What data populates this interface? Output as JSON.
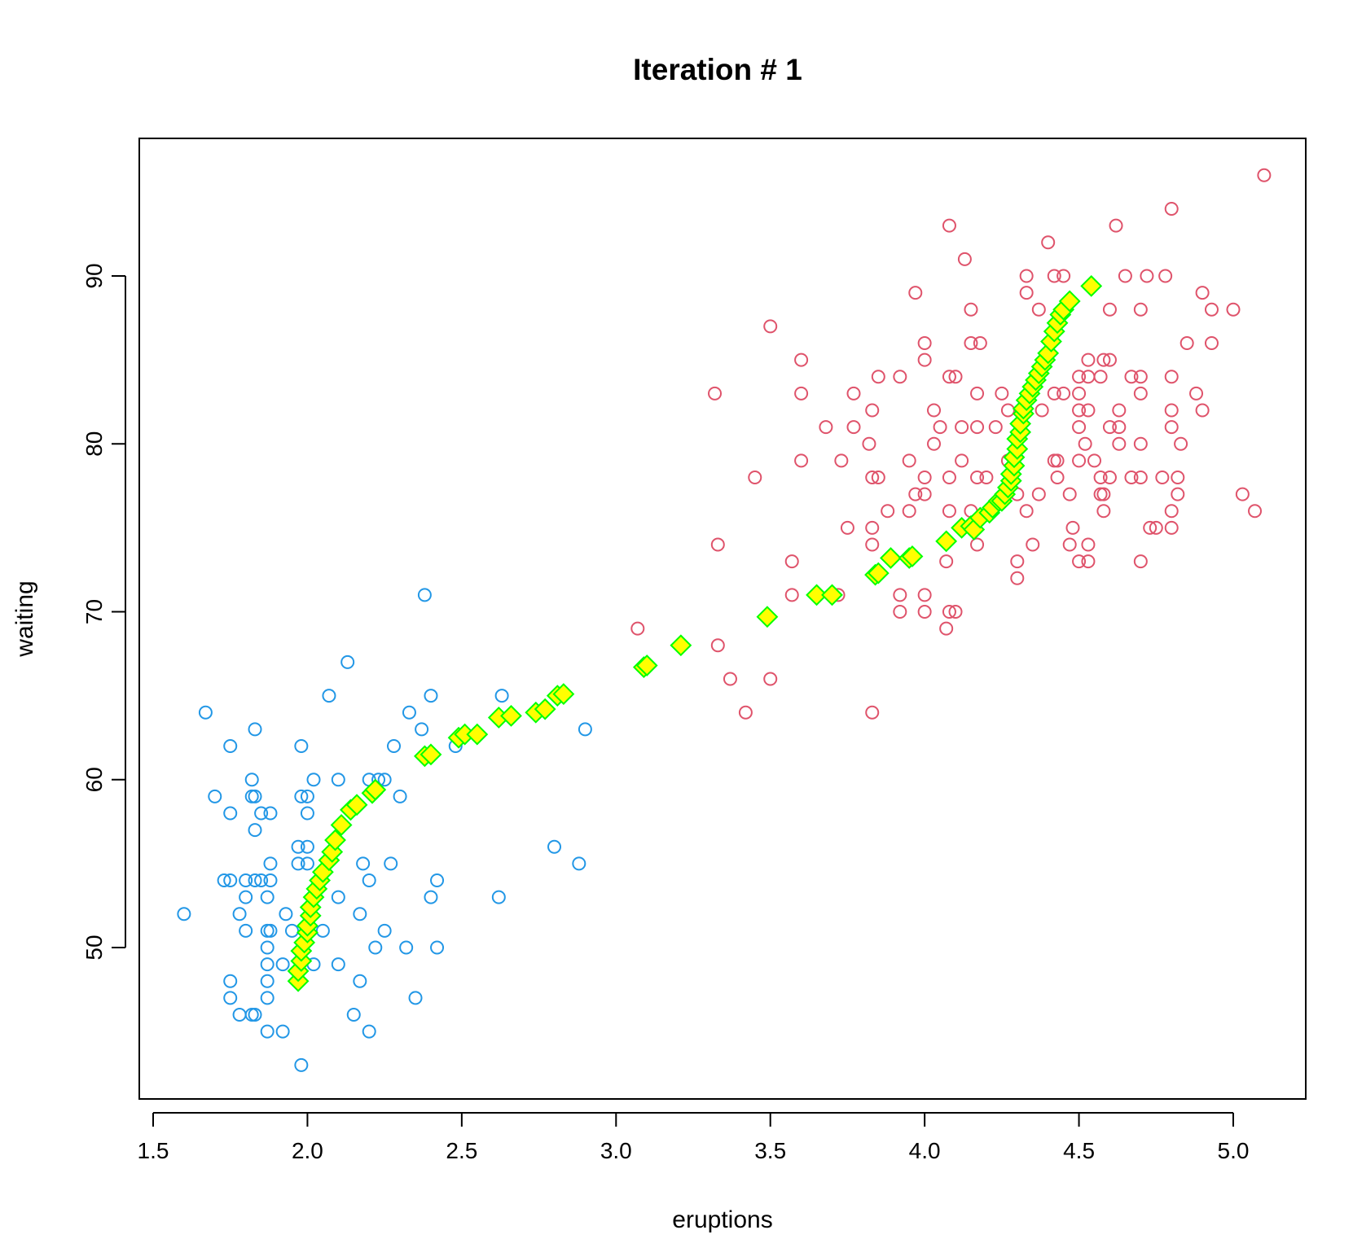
{
  "chart_data": {
    "type": "scatter",
    "title": "Iteration # 1",
    "xlabel": "eruptions",
    "ylabel": "waiting",
    "xlim": [
      1.5,
      5.2
    ],
    "ylim": [
      42,
      99
    ],
    "x_ticks": [
      "1.5",
      "2.0",
      "2.5",
      "3.0",
      "3.5",
      "4.0",
      "4.5",
      "5.0"
    ],
    "y_ticks": [
      "50",
      "60",
      "70",
      "80",
      "90"
    ],
    "grid": false,
    "series": [
      {
        "marker": "circle",
        "color": "#2297E6",
        "points": [
          [
            1.6,
            52
          ],
          [
            1.67,
            64
          ],
          [
            1.7,
            59
          ],
          [
            1.73,
            54
          ],
          [
            1.75,
            54
          ],
          [
            1.75,
            58
          ],
          [
            1.75,
            62
          ],
          [
            1.75,
            48
          ],
          [
            1.75,
            47
          ],
          [
            1.78,
            46
          ],
          [
            1.78,
            52
          ],
          [
            1.8,
            51
          ],
          [
            1.8,
            53
          ],
          [
            1.8,
            54
          ],
          [
            1.82,
            46
          ],
          [
            1.82,
            59
          ],
          [
            1.82,
            60
          ],
          [
            1.83,
            46
          ],
          [
            1.83,
            54
          ],
          [
            1.83,
            57
          ],
          [
            1.83,
            59
          ],
          [
            1.83,
            63
          ],
          [
            1.85,
            54
          ],
          [
            1.85,
            58
          ],
          [
            1.87,
            45
          ],
          [
            1.87,
            47
          ],
          [
            1.87,
            48
          ],
          [
            1.87,
            49
          ],
          [
            1.87,
            50
          ],
          [
            1.87,
            51
          ],
          [
            1.87,
            53
          ],
          [
            1.88,
            51
          ],
          [
            1.88,
            54
          ],
          [
            1.88,
            55
          ],
          [
            1.88,
            58
          ],
          [
            1.92,
            45
          ],
          [
            1.92,
            49
          ],
          [
            1.93,
            52
          ],
          [
            1.95,
            51
          ],
          [
            1.97,
            55
          ],
          [
            1.97,
            56
          ],
          [
            1.98,
            43
          ],
          [
            1.98,
            59
          ],
          [
            1.98,
            62
          ],
          [
            2.0,
            55
          ],
          [
            2.0,
            56
          ],
          [
            2.0,
            58
          ],
          [
            2.0,
            59
          ],
          [
            2.02,
            49
          ],
          [
            2.02,
            60
          ],
          [
            2.05,
            51
          ],
          [
            2.07,
            65
          ],
          [
            2.1,
            49
          ],
          [
            2.1,
            53
          ],
          [
            2.1,
            60
          ],
          [
            2.13,
            67
          ],
          [
            2.15,
            46
          ],
          [
            2.17,
            48
          ],
          [
            2.17,
            52
          ],
          [
            2.18,
            55
          ],
          [
            2.2,
            45
          ],
          [
            2.2,
            54
          ],
          [
            2.2,
            60
          ],
          [
            2.22,
            50
          ],
          [
            2.23,
            60
          ],
          [
            2.25,
            51
          ],
          [
            2.25,
            60
          ],
          [
            2.27,
            55
          ],
          [
            2.28,
            62
          ],
          [
            2.3,
            59
          ],
          [
            2.32,
            50
          ],
          [
            2.33,
            64
          ],
          [
            2.35,
            47
          ],
          [
            2.37,
            63
          ],
          [
            2.38,
            71
          ],
          [
            2.4,
            53
          ],
          [
            2.4,
            65
          ],
          [
            2.42,
            50
          ],
          [
            2.42,
            54
          ],
          [
            2.48,
            62
          ],
          [
            2.62,
            53
          ],
          [
            2.63,
            65
          ],
          [
            2.8,
            56
          ],
          [
            2.88,
            55
          ],
          [
            2.9,
            63
          ]
        ]
      },
      {
        "marker": "circle",
        "color": "#DF536B",
        "points": [
          [
            3.07,
            69
          ],
          [
            3.32,
            83
          ],
          [
            3.33,
            68
          ],
          [
            3.33,
            74
          ],
          [
            3.37,
            66
          ],
          [
            3.42,
            64
          ],
          [
            3.45,
            78
          ],
          [
            3.5,
            66
          ],
          [
            3.5,
            87
          ],
          [
            3.57,
            71
          ],
          [
            3.57,
            73
          ],
          [
            3.6,
            79
          ],
          [
            3.6,
            83
          ],
          [
            3.6,
            85
          ],
          [
            3.68,
            81
          ],
          [
            3.72,
            71
          ],
          [
            3.73,
            79
          ],
          [
            3.75,
            75
          ],
          [
            3.77,
            81
          ],
          [
            3.77,
            83
          ],
          [
            3.82,
            80
          ],
          [
            3.83,
            64
          ],
          [
            3.83,
            74
          ],
          [
            3.83,
            75
          ],
          [
            3.83,
            78
          ],
          [
            3.83,
            82
          ],
          [
            3.85,
            78
          ],
          [
            3.85,
            84
          ],
          [
            3.88,
            76
          ],
          [
            3.92,
            70
          ],
          [
            3.92,
            71
          ],
          [
            3.92,
            84
          ],
          [
            3.95,
            76
          ],
          [
            3.95,
            79
          ],
          [
            3.97,
            77
          ],
          [
            3.97,
            89
          ],
          [
            4.0,
            70
          ],
          [
            4.0,
            71
          ],
          [
            4.0,
            77
          ],
          [
            4.0,
            78
          ],
          [
            4.0,
            85
          ],
          [
            4.0,
            86
          ],
          [
            4.03,
            80
          ],
          [
            4.03,
            82
          ],
          [
            4.05,
            81
          ],
          [
            4.07,
            69
          ],
          [
            4.07,
            73
          ],
          [
            4.08,
            70
          ],
          [
            4.08,
            76
          ],
          [
            4.08,
            78
          ],
          [
            4.08,
            84
          ],
          [
            4.08,
            93
          ],
          [
            4.1,
            70
          ],
          [
            4.1,
            84
          ],
          [
            4.12,
            79
          ],
          [
            4.12,
            81
          ],
          [
            4.13,
            91
          ],
          [
            4.15,
            76
          ],
          [
            4.15,
            86
          ],
          [
            4.15,
            88
          ],
          [
            4.17,
            74
          ],
          [
            4.17,
            78
          ],
          [
            4.17,
            81
          ],
          [
            4.17,
            83
          ],
          [
            4.18,
            86
          ],
          [
            4.2,
            78
          ],
          [
            4.23,
            81
          ],
          [
            4.25,
            83
          ],
          [
            4.27,
            79
          ],
          [
            4.27,
            82
          ],
          [
            4.3,
            72
          ],
          [
            4.3,
            73
          ],
          [
            4.3,
            77
          ],
          [
            4.33,
            76
          ],
          [
            4.33,
            89
          ],
          [
            4.33,
            90
          ],
          [
            4.35,
            74
          ],
          [
            4.37,
            77
          ],
          [
            4.37,
            88
          ],
          [
            4.38,
            82
          ],
          [
            4.4,
            92
          ],
          [
            4.42,
            79
          ],
          [
            4.42,
            83
          ],
          [
            4.42,
            90
          ],
          [
            4.43,
            78
          ],
          [
            4.43,
            79
          ],
          [
            4.45,
            83
          ],
          [
            4.45,
            90
          ],
          [
            4.47,
            74
          ],
          [
            4.47,
            77
          ],
          [
            4.48,
            75
          ],
          [
            4.5,
            73
          ],
          [
            4.5,
            79
          ],
          [
            4.5,
            81
          ],
          [
            4.5,
            82
          ],
          [
            4.5,
            83
          ],
          [
            4.5,
            84
          ],
          [
            4.52,
            80
          ],
          [
            4.53,
            73
          ],
          [
            4.53,
            74
          ],
          [
            4.53,
            82
          ],
          [
            4.53,
            84
          ],
          [
            4.53,
            85
          ],
          [
            4.55,
            79
          ],
          [
            4.57,
            77
          ],
          [
            4.57,
            78
          ],
          [
            4.57,
            84
          ],
          [
            4.58,
            76
          ],
          [
            4.58,
            77
          ],
          [
            4.58,
            85
          ],
          [
            4.6,
            78
          ],
          [
            4.6,
            81
          ],
          [
            4.6,
            85
          ],
          [
            4.6,
            88
          ],
          [
            4.62,
            93
          ],
          [
            4.63,
            80
          ],
          [
            4.63,
            81
          ],
          [
            4.63,
            82
          ],
          [
            4.65,
            90
          ],
          [
            4.67,
            78
          ],
          [
            4.67,
            84
          ],
          [
            4.7,
            73
          ],
          [
            4.7,
            78
          ],
          [
            4.7,
            80
          ],
          [
            4.7,
            83
          ],
          [
            4.7,
            84
          ],
          [
            4.7,
            88
          ],
          [
            4.72,
            90
          ],
          [
            4.73,
            75
          ],
          [
            4.75,
            75
          ],
          [
            4.77,
            78
          ],
          [
            4.78,
            90
          ],
          [
            4.8,
            75
          ],
          [
            4.8,
            76
          ],
          [
            4.8,
            81
          ],
          [
            4.8,
            82
          ],
          [
            4.8,
            84
          ],
          [
            4.8,
            94
          ],
          [
            4.82,
            77
          ],
          [
            4.82,
            78
          ],
          [
            4.83,
            80
          ],
          [
            4.85,
            86
          ],
          [
            4.88,
            83
          ],
          [
            4.9,
            82
          ],
          [
            4.9,
            89
          ],
          [
            4.93,
            86
          ],
          [
            4.93,
            88
          ],
          [
            5.0,
            88
          ],
          [
            5.03,
            77
          ],
          [
            5.07,
            76
          ],
          [
            5.1,
            96
          ]
        ]
      },
      {
        "marker": "diamond",
        "color": "#FFFF00",
        "stroke": "#00FF00",
        "points": [
          [
            1.97,
            48.0
          ],
          [
            1.97,
            48.6
          ],
          [
            1.98,
            49.2
          ],
          [
            1.98,
            49.8
          ],
          [
            1.99,
            50.3
          ],
          [
            2.0,
            50.9
          ],
          [
            2.0,
            51.3
          ],
          [
            2.01,
            51.9
          ],
          [
            2.01,
            52.4
          ],
          [
            2.02,
            53.0
          ],
          [
            2.03,
            53.5
          ],
          [
            2.04,
            54.0
          ],
          [
            2.05,
            54.5
          ],
          [
            2.07,
            55.2
          ],
          [
            2.08,
            55.7
          ],
          [
            2.09,
            56.4
          ],
          [
            2.11,
            57.3
          ],
          [
            2.14,
            58.2
          ],
          [
            2.16,
            58.5
          ],
          [
            2.21,
            59.2
          ],
          [
            2.22,
            59.4
          ],
          [
            2.38,
            61.4
          ],
          [
            2.4,
            61.5
          ],
          [
            2.49,
            62.5
          ],
          [
            2.51,
            62.7
          ],
          [
            2.55,
            62.7
          ],
          [
            2.62,
            63.7
          ],
          [
            2.66,
            63.8
          ],
          [
            2.74,
            64.0
          ],
          [
            2.77,
            64.2
          ],
          [
            2.81,
            65.0
          ],
          [
            2.83,
            65.1
          ],
          [
            3.09,
            66.7
          ],
          [
            3.1,
            66.8
          ],
          [
            3.21,
            68.0
          ],
          [
            3.49,
            69.7
          ],
          [
            3.65,
            71.0
          ],
          [
            3.7,
            71.0
          ],
          [
            3.84,
            72.2
          ],
          [
            3.85,
            72.3
          ],
          [
            3.89,
            73.2
          ],
          [
            3.95,
            73.2
          ],
          [
            3.96,
            73.3
          ],
          [
            4.07,
            74.2
          ],
          [
            4.12,
            75.0
          ],
          [
            4.15,
            75.1
          ],
          [
            4.16,
            74.9
          ],
          [
            4.18,
            75.6
          ],
          [
            4.21,
            75.9
          ],
          [
            4.22,
            76.2
          ],
          [
            4.24,
            76.6
          ],
          [
            4.25,
            76.6
          ],
          [
            4.26,
            77.0
          ],
          [
            4.27,
            77.4
          ],
          [
            4.28,
            77.8
          ],
          [
            4.28,
            78.2
          ],
          [
            4.29,
            78.7
          ],
          [
            4.29,
            79.2
          ],
          [
            4.3,
            79.7
          ],
          [
            4.3,
            80.3
          ],
          [
            4.31,
            80.7
          ],
          [
            4.31,
            81.2
          ],
          [
            4.32,
            81.8
          ],
          [
            4.32,
            82.1
          ],
          [
            4.33,
            82.6
          ],
          [
            4.34,
            83.0
          ],
          [
            4.35,
            83.4
          ],
          [
            4.36,
            83.8
          ],
          [
            4.37,
            84.2
          ],
          [
            4.38,
            84.6
          ],
          [
            4.39,
            85.0
          ],
          [
            4.4,
            85.4
          ],
          [
            4.41,
            86.1
          ],
          [
            4.42,
            86.7
          ],
          [
            4.43,
            87.2
          ],
          [
            4.44,
            87.7
          ],
          [
            4.45,
            88.0
          ],
          [
            4.47,
            88.5
          ],
          [
            4.54,
            89.4
          ]
        ]
      }
    ]
  }
}
